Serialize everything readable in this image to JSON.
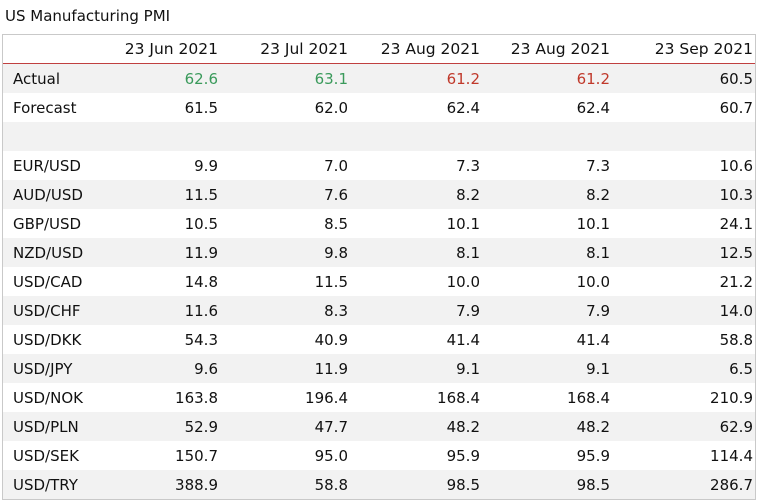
{
  "title": "US Manufacturing PMI",
  "columns": [
    "23 Jun 2021",
    "23 Jul 2021",
    "23 Aug 2021",
    "23 Aug 2021",
    "23 Sep 2021"
  ],
  "actual": {
    "label": "Actual",
    "values": [
      "62.6",
      "63.1",
      "61.2",
      "61.2",
      "60.5"
    ]
  },
  "forecast": {
    "label": "Forecast",
    "values": [
      "61.5",
      "62.0",
      "62.4",
      "62.4",
      "60.7"
    ]
  },
  "colors": {
    "beat": "#3a9a5b",
    "miss": "#c0392b",
    "header_rule": "#c04040",
    "band": "#f2f2f2"
  },
  "pairs": [
    {
      "label": "EUR/USD",
      "values": [
        "9.9",
        "7.0",
        "7.3",
        "7.3",
        "10.6"
      ]
    },
    {
      "label": "AUD/USD",
      "values": [
        "11.5",
        "7.6",
        "8.2",
        "8.2",
        "10.3"
      ]
    },
    {
      "label": "GBP/USD",
      "values": [
        "10.5",
        "8.5",
        "10.1",
        "10.1",
        "24.1"
      ]
    },
    {
      "label": "NZD/USD",
      "values": [
        "11.9",
        "9.8",
        "8.1",
        "8.1",
        "12.5"
      ]
    },
    {
      "label": "USD/CAD",
      "values": [
        "14.8",
        "11.5",
        "10.0",
        "10.0",
        "21.2"
      ]
    },
    {
      "label": "USD/CHF",
      "values": [
        "11.6",
        "8.3",
        "7.9",
        "7.9",
        "14.0"
      ]
    },
    {
      "label": "USD/DKK",
      "values": [
        "54.3",
        "40.9",
        "41.4",
        "41.4",
        "58.8"
      ]
    },
    {
      "label": "USD/JPY",
      "values": [
        "9.6",
        "11.9",
        "9.1",
        "9.1",
        "6.5"
      ]
    },
    {
      "label": "USD/NOK",
      "values": [
        "163.8",
        "196.4",
        "168.4",
        "168.4",
        "210.9"
      ]
    },
    {
      "label": "USD/PLN",
      "values": [
        "52.9",
        "47.7",
        "48.2",
        "48.2",
        "62.9"
      ]
    },
    {
      "label": "USD/SEK",
      "values": [
        "150.7",
        "95.0",
        "95.9",
        "95.9",
        "114.4"
      ]
    },
    {
      "label": "USD/TRY",
      "values": [
        "388.9",
        "58.8",
        "98.5",
        "98.5",
        "286.7"
      ]
    }
  ]
}
